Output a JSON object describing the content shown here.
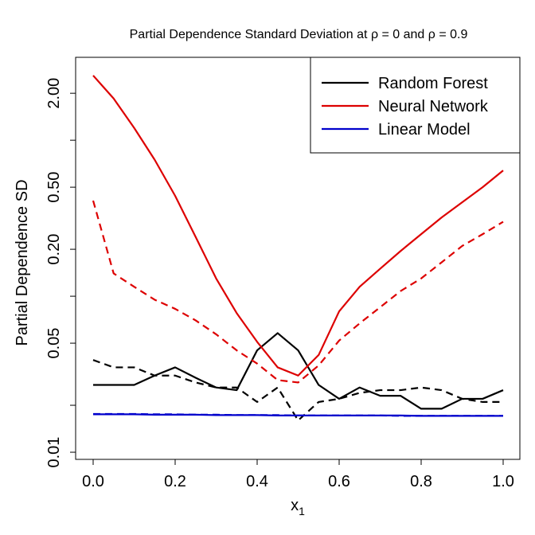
{
  "chart_data": {
    "type": "line",
    "title_main": "Partial Dependence Standard Deviation at ",
    "title_rho": "ρ",
    "title_mid_1": " = 0 and ",
    "title_mid_2": " = 0.9",
    "xlabel": "x",
    "xlabel_sub": "1",
    "ylabel": "Partial Dependence SD",
    "y_scale": "log",
    "xlim": [
      0,
      1
    ],
    "ylim": [
      0.009,
      3.4
    ],
    "x_ticks": [
      0.0,
      0.2,
      0.4,
      0.6,
      0.8,
      1.0
    ],
    "x_tick_labels": [
      "0.0",
      "0.2",
      "0.4",
      "0.6",
      "0.8",
      "1.0"
    ],
    "y_ticks": [
      0.01,
      0.02,
      0.05,
      0.1,
      0.2,
      0.5,
      1,
      2
    ],
    "y_tick_labels": [
      "0.01",
      "",
      "0.05",
      "",
      "0.20",
      "0.50",
      "",
      "2.00"
    ],
    "legend": [
      {
        "label": "Random Forest",
        "color": "#000000"
      },
      {
        "label": "Neural Network",
        "color": "#dd0000"
      },
      {
        "label": "Linear Model",
        "color": "#0000cc"
      }
    ],
    "legend_position": "top-right",
    "x": [
      0.0,
      0.05,
      0.1,
      0.15,
      0.2,
      0.25,
      0.3,
      0.35,
      0.4,
      0.45,
      0.5,
      0.55,
      0.6,
      0.65,
      0.7,
      0.75,
      0.8,
      0.85,
      0.9,
      0.95,
      1.0
    ],
    "series": [
      {
        "name": "Random Forest (rho = 0)",
        "model": "Random Forest",
        "color": "#000000",
        "dash": "solid",
        "values": [
          0.027,
          0.027,
          0.027,
          0.031,
          0.035,
          0.03,
          0.026,
          0.025,
          0.045,
          0.058,
          0.045,
          0.027,
          0.022,
          0.026,
          0.023,
          0.023,
          0.019,
          0.019,
          0.022,
          0.022,
          0.025
        ]
      },
      {
        "name": "Random Forest (rho = 0.9)",
        "model": "Random Forest",
        "color": "#000000",
        "dash": "dashed",
        "values": [
          0.039,
          0.035,
          0.035,
          0.031,
          0.031,
          0.028,
          0.026,
          0.026,
          0.021,
          0.026,
          0.016,
          0.021,
          0.022,
          0.024,
          0.025,
          0.025,
          0.026,
          0.025,
          0.022,
          0.021,
          0.021
        ]
      },
      {
        "name": "Neural Network (rho = 0)",
        "model": "Neural Network",
        "color": "#dd0000",
        "dash": "solid",
        "values": [
          2.6,
          1.85,
          1.2,
          0.75,
          0.44,
          0.24,
          0.13,
          0.078,
          0.051,
          0.035,
          0.031,
          0.042,
          0.08,
          0.115,
          0.15,
          0.195,
          0.25,
          0.32,
          0.4,
          0.5,
          0.64
        ]
      },
      {
        "name": "Neural Network (rho = 0.9)",
        "model": "Neural Network",
        "color": "#dd0000",
        "dash": "dashed",
        "values": [
          0.41,
          0.14,
          0.115,
          0.095,
          0.083,
          0.07,
          0.057,
          0.045,
          0.037,
          0.029,
          0.028,
          0.036,
          0.052,
          0.067,
          0.085,
          0.108,
          0.13,
          0.165,
          0.21,
          0.25,
          0.3
        ]
      },
      {
        "name": "Linear Model (rho = 0)",
        "model": "Linear Model",
        "color": "#0000cc",
        "dash": "solid",
        "values": [
          0.0175,
          0.0175,
          0.0175,
          0.0174,
          0.0174,
          0.0174,
          0.0173,
          0.0173,
          0.0173,
          0.0172,
          0.0172,
          0.0172,
          0.0172,
          0.0172,
          0.0172,
          0.0172,
          0.0171,
          0.0171,
          0.0171,
          0.0171,
          0.0171
        ]
      },
      {
        "name": "Linear Model (rho = 0.9)",
        "model": "Linear Model",
        "color": "#0000cc",
        "dash": "dashed",
        "values": [
          0.0176,
          0.0176,
          0.0176,
          0.0175,
          0.0175,
          0.0174,
          0.0174,
          0.0173,
          0.0173,
          0.0173,
          0.0172,
          0.0172,
          0.0172,
          0.0172,
          0.0172,
          0.0171,
          0.0171,
          0.0171,
          0.0171,
          0.0171,
          0.0171
        ]
      }
    ]
  }
}
